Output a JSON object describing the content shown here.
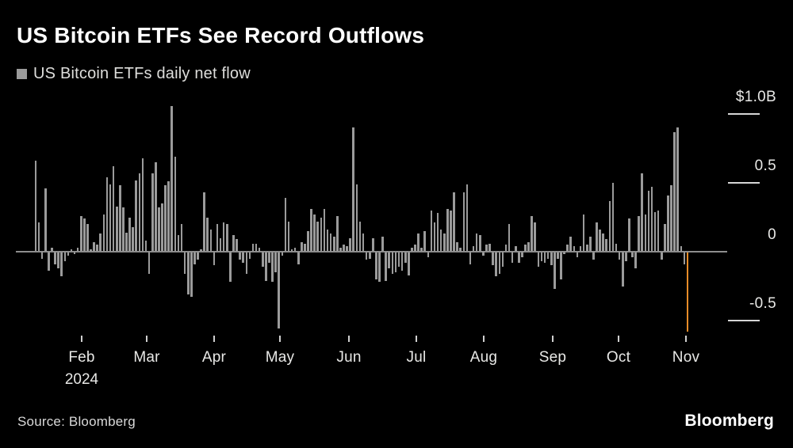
{
  "header": {
    "title": "US Bitcoin ETFs See Record Outflows",
    "legend_label": "US Bitcoin ETFs daily net flow"
  },
  "footer": {
    "source": "Source: Bloomberg",
    "logo": "Bloomberg"
  },
  "chart_data": {
    "type": "bar",
    "title": "US Bitcoin ETFs See Record Outflows",
    "series_name": "US Bitcoin ETFs daily net flow",
    "unit": "billions USD",
    "ylim": [
      -0.7,
      1.15
    ],
    "grid": false,
    "legend_position": "top-left",
    "bar_color": "#9B9B9B",
    "highlight_color": "#E78C28",
    "highlight_index": 201,
    "highlight_value": -0.58,
    "y_ticks": [
      {
        "label": "$1.0B",
        "value": 1.0
      },
      {
        "label": "0.5",
        "value": 0.5
      },
      {
        "label": "0",
        "value": 0
      },
      {
        "label": "-0.5",
        "value": -0.5
      }
    ],
    "x_tick_labels": [
      "Feb",
      "Mar",
      "Apr",
      "May",
      "Jun",
      "Jul",
      "Aug",
      "Sep",
      "Oct",
      "Nov"
    ],
    "year_label": "2024",
    "values": [
      0.66,
      0.21,
      -0.05,
      0.46,
      -0.14,
      0.03,
      -0.09,
      -0.12,
      -0.18,
      -0.07,
      -0.03,
      0.02,
      -0.02,
      0.03,
      0.26,
      0.24,
      0.2,
      0.02,
      0.07,
      0.05,
      0.13,
      0.27,
      0.54,
      0.49,
      0.62,
      0.33,
      0.48,
      0.32,
      0.14,
      0.25,
      0.18,
      0.52,
      0.57,
      0.68,
      0.08,
      -0.16,
      0.57,
      0.65,
      0.32,
      0.35,
      0.48,
      0.51,
      1.06,
      0.69,
      0.12,
      0.2,
      -0.16,
      -0.31,
      -0.33,
      -0.09,
      -0.06,
      0.02,
      0.43,
      0.25,
      0.16,
      -0.1,
      0.2,
      0.1,
      0.21,
      0.2,
      -0.22,
      0.12,
      0.09,
      -0.06,
      -0.08,
      -0.16,
      -0.05,
      0.06,
      0.06,
      0.03,
      -0.11,
      -0.21,
      -0.08,
      -0.22,
      -0.15,
      -0.56,
      -0.03,
      0.39,
      0.22,
      0.02,
      0.03,
      -0.09,
      0.07,
      0.06,
      0.15,
      0.31,
      0.27,
      0.22,
      0.25,
      0.31,
      0.16,
      0.13,
      0.11,
      0.26,
      0.03,
      0.05,
      0.04,
      0.1,
      0.9,
      0.49,
      0.22,
      0.13,
      -0.06,
      -0.05,
      0.1,
      -0.2,
      -0.22,
      0.11,
      -0.21,
      -0.12,
      -0.16,
      -0.15,
      -0.11,
      -0.14,
      -0.08,
      -0.17,
      0.03,
      0.05,
      0.13,
      0.03,
      0.15,
      -0.04,
      0.3,
      0.21,
      0.28,
      0.16,
      0.13,
      0.31,
      0.3,
      0.43,
      0.07,
      0.03,
      0.43,
      0.49,
      -0.09,
      0.04,
      0.13,
      0.12,
      -0.03,
      0.05,
      0.06,
      -0.1,
      -0.18,
      -0.16,
      -0.11,
      0.05,
      0.2,
      -0.08,
      0.04,
      -0.08,
      -0.04,
      0.05,
      0.07,
      0.26,
      0.21,
      -0.11,
      -0.07,
      -0.08,
      -0.05,
      -0.1,
      -0.27,
      -0.05,
      -0.2,
      -0.02,
      0.05,
      0.11,
      0.04,
      -0.04,
      0.04,
      0.27,
      0.05,
      0.11,
      -0.06,
      0.21,
      0.16,
      0.13,
      0.09,
      0.37,
      0.5,
      0.06,
      -0.06,
      -0.25,
      -0.07,
      0.24,
      -0.04,
      -0.12,
      0.26,
      0.57,
      0.27,
      0.44,
      0.47,
      0.29,
      0.3,
      -0.06,
      0.2,
      0.41,
      0.48,
      0.87,
      0.9,
      0.04,
      -0.09,
      -0.58
    ]
  }
}
